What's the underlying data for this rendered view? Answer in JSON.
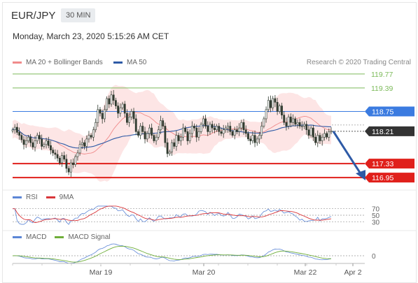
{
  "header": {
    "symbol": "EUR/JPY",
    "timeframe": "30 MIN",
    "timestamp": "Monday, March 23, 2020 5:15:26 AM CET"
  },
  "legend": {
    "ma20_label": "MA 20 + Bollinger Bands",
    "ma50_label": "MA 50",
    "credit": "Research © 2020 Trading Central"
  },
  "colors": {
    "ma20": "#f08b8b",
    "ma50": "#2e5aa6",
    "resistance": "#7cba5a",
    "pivot": "#3b7be0",
    "support": "#e0201b",
    "current": "#333333",
    "candle": "#2f3a2f",
    "bbfill": "#fde0e0",
    "arrow": "#2e5aa6",
    "rsi": "#5c86d6",
    "rsima": "#d9363a",
    "macd": "#5c86d6",
    "macdsig": "#6fae3a"
  },
  "chart_data": [
    {
      "type": "line",
      "title": "",
      "y_range": [
        116.8,
        119.9
      ],
      "x_ticks": [
        "Mar 19",
        "Mar 20",
        "Mar 22",
        "Apr 2"
      ],
      "levels": [
        {
          "name": "R2",
          "value": 119.77,
          "label": "119.77",
          "style": "resistance"
        },
        {
          "name": "R1",
          "value": 119.39,
          "label": "119.39",
          "style": "resistance"
        },
        {
          "name": "pivot",
          "value": 118.75,
          "label": "118.75",
          "style": "pivot"
        },
        {
          "name": "last",
          "value": 118.21,
          "label": "118.21",
          "style": "current"
        },
        {
          "name": "S1",
          "value": 117.33,
          "label": "117.33",
          "style": "support"
        },
        {
          "name": "S2",
          "value": 116.95,
          "label": "116.95",
          "style": "support"
        }
      ],
      "close": [
        118.25,
        118.32,
        118.18,
        118.1,
        117.98,
        117.85,
        117.95,
        118.05,
        117.9,
        117.78,
        117.95,
        118.1,
        118.0,
        117.8,
        117.85,
        117.95,
        117.82,
        117.7,
        117.62,
        117.58,
        117.48,
        117.35,
        117.55,
        117.45,
        117.2,
        117.1,
        117.35,
        117.3,
        117.52,
        117.62,
        117.85,
        117.9,
        117.8,
        118.0,
        118.1,
        118.05,
        118.25,
        118.45,
        118.8,
        118.7,
        118.55,
        118.8,
        119.1,
        118.95,
        119.2,
        119.05,
        118.9,
        118.7,
        118.85,
        118.95,
        118.7,
        118.45,
        118.6,
        118.75,
        118.55,
        118.2,
        118.1,
        118.35,
        118.2,
        118.0,
        118.15,
        118.3,
        118.1,
        117.95,
        118.05,
        118.25,
        118.5,
        118.35,
        117.9,
        117.6,
        117.65,
        117.9,
        117.8,
        118.1,
        117.95,
        118.05,
        118.3,
        118.2,
        117.95,
        118.15,
        118.35,
        118.3,
        118.05,
        118.2,
        118.4,
        118.55,
        118.35,
        118.2,
        118.4,
        118.3,
        118.25,
        118.35,
        118.2,
        118.15,
        118.25,
        118.3,
        118.35,
        118.2,
        118.1,
        118.25,
        118.2,
        118.3,
        118.45,
        118.25,
        118.15,
        118.0,
        117.95,
        118.1,
        117.9,
        118.0,
        118.1,
        118.35,
        118.55,
        118.8,
        119.05,
        118.85,
        119.1,
        119.0,
        118.75,
        118.9,
        118.65,
        118.45,
        118.35,
        118.6,
        118.45,
        118.55,
        118.4,
        118.45,
        118.35,
        118.35,
        118.4,
        118.25,
        118.1,
        118.3,
        118.05,
        117.9,
        118.1,
        117.95,
        118.05,
        118.15,
        118.05,
        118.2,
        118.21
      ],
      "projection": [
        118.21,
        116.95
      ],
      "series_labels": [
        "MA 20 + Bollinger Bands",
        "MA 50"
      ]
    },
    {
      "type": "line",
      "levels": [
        70,
        50,
        30
      ],
      "level_labels": [
        "70",
        "50",
        "30"
      ],
      "series_labels": [
        "RSI",
        "9MA"
      ]
    },
    {
      "type": "line",
      "levels": [
        0
      ],
      "level_labels": [
        "0"
      ],
      "series_labels": [
        "MACD",
        "MACD Signal"
      ]
    }
  ]
}
